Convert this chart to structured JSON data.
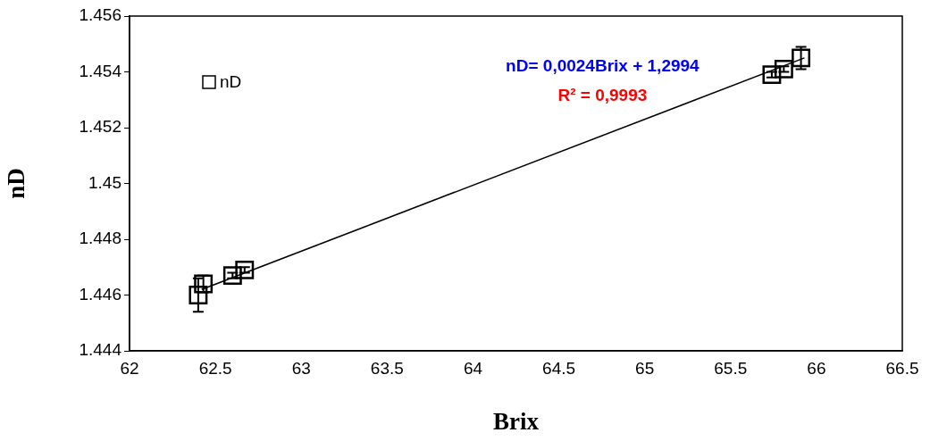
{
  "chart_data": {
    "type": "scatter",
    "xlabel": "Brix",
    "ylabel": "nD",
    "series": [
      {
        "name": "nD",
        "marker": "square",
        "color": "#000000",
        "x": [
          62.4,
          62.43,
          62.6,
          62.67,
          65.74,
          65.81,
          65.91
        ],
        "values": [
          1.446,
          1.4464,
          1.4467,
          1.4469,
          1.4539,
          1.4541,
          1.4545
        ],
        "errors": [
          0.0006,
          0.0003,
          0.0001,
          0.0001,
          0.0001,
          0.0001,
          0.0004
        ]
      },
      {
        "type": "line",
        "marker": "none",
        "color": "#000000",
        "x": [
          62.42,
          65.93
        ],
        "values": [
          1.4462,
          1.4545
        ]
      }
    ],
    "legend": "top left",
    "grid": false,
    "xlim": [
      62,
      66.5
    ],
    "xticks": [
      62,
      62.5,
      63,
      63.5,
      64,
      64.5,
      65,
      65.5,
      66,
      66.5
    ],
    "ylim": [
      1.444,
      1.456
    ],
    "yticks": [
      1.444,
      1.446,
      1.448,
      1.45,
      1.452,
      1.454,
      1.456
    ],
    "annotations": [
      "nD= 0,0024Brix + 1,2994",
      "R² = 0,9993"
    ]
  }
}
